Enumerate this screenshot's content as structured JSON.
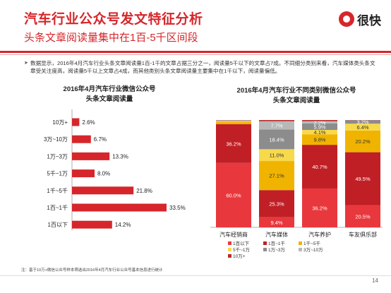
{
  "header": {
    "title": "汽车行业公众号发文特征分析",
    "subtitle": "头条文章阅读量集中在1百-5千区间段",
    "logo_text": "很快"
  },
  "body_text": "数据显示，2016年4月汽车行业头条文章阅读量1百-1千的文章占据三分之一，阅读量5千以下的文章占7成。不同细分类别来看，汽车媒体类头条文章受关注度高，阅读量5千以上文章占4成，而其他类别头条文章阅读量主要集中在1千以下，阅读量偏低。",
  "colors": {
    "accent": "#d6262b",
    "seg_1b_below": "#e8383d",
    "seg_1b_1q": "#c01f25",
    "seg_1q_5q": "#f0b400",
    "seg_5q_1w": "#f7d94c",
    "seg_1w_3w": "#8c8c8c",
    "seg_3w_10w": "#b8b8b8",
    "seg_10w_plus": "#ba2b2b"
  },
  "chart_data": [
    {
      "type": "bar",
      "orientation": "horizontal",
      "title": "2016年4月汽车行业微信公众号",
      "subtitle": "头条文章阅读量",
      "categories": [
        "10万+",
        "3万~10万",
        "1万~3万",
        "5千~1万",
        "1千~5千",
        "1百~1千",
        "1百以下"
      ],
      "values": [
        2.6,
        6.7,
        13.3,
        8.0,
        21.8,
        33.5,
        14.2
      ],
      "value_labels": [
        "2.6%",
        "6.7%",
        "13.3%",
        "8.0%",
        "21.8%",
        "33.5%",
        "14.2%"
      ],
      "xlim": [
        0,
        35
      ],
      "grid": false
    },
    {
      "type": "bar",
      "stacked": true,
      "title": "2016年4月汽车行业不同类别微信公众号",
      "subtitle": "头条文章阅读量",
      "categories": [
        "汽车经销商",
        "汽车媒体",
        "汽车养护",
        "车友俱乐部"
      ],
      "series": [
        {
          "name": "1百以下",
          "values": [
            60.0,
            9.4,
            36.2,
            20.5
          ],
          "labels": [
            "60.0%",
            "9.4%",
            "36.2%",
            "20.5%"
          ]
        },
        {
          "name": "1百~1千",
          "values": [
            36.2,
            25.3,
            40.7,
            49.5
          ],
          "labels": [
            "36.2%",
            "25.3%",
            "40.7%",
            "49.5%"
          ]
        },
        {
          "name": "1千~5千",
          "values": [
            2.0,
            27.1,
            9.8,
            20.2
          ],
          "labels": [
            "",
            "27.1%",
            "9.8%",
            "20.2%"
          ]
        },
        {
          "name": "5千~1万",
          "values": [
            0.8,
            11.0,
            4.1,
            6.4
          ],
          "labels": [
            "",
            "11.0%",
            "4.1%",
            "6.4%"
          ]
        },
        {
          "name": "1万~3万",
          "values": [
            0.5,
            18.4,
            5.9,
            3.2
          ],
          "labels": [
            "",
            "18.4%",
            "5.9%",
            "3.2%"
          ]
        },
        {
          "name": "3万~10万",
          "values": [
            0.3,
            7.7,
            2.2,
            0.0
          ],
          "labels": [
            "",
            "7.7%",
            "2.2%",
            ""
          ]
        },
        {
          "name": "10万+",
          "values": [
            0.2,
            1.1,
            1.1,
            0.2
          ],
          "labels": [
            "",
            "",
            "",
            ""
          ]
        }
      ],
      "ylim": [
        0,
        100
      ],
      "legend_position": "bottom",
      "grid": false
    }
  ],
  "footer": {
    "note": "注：基于10万+微信公众号样本筛选出2016年4月汽车行业公众号基本信息进行统计",
    "page": "14"
  }
}
